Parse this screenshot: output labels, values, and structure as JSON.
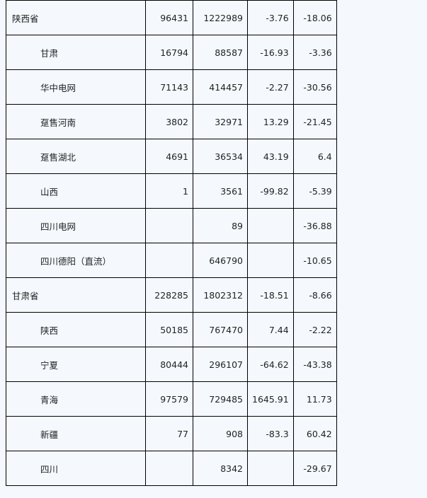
{
  "rows": [
    {
      "name": "陕西省",
      "sub": false,
      "c1": "96431",
      "c2": "1222989",
      "c3": "-3.76",
      "c4": "-18.06"
    },
    {
      "name": "甘肃",
      "sub": true,
      "c1": "16794",
      "c2": "88587",
      "c3": "-16.93",
      "c4": "-3.36"
    },
    {
      "name": "华中电网",
      "sub": true,
      "c1": "71143",
      "c2": "414457",
      "c3": "-2.27",
      "c4": "-30.56"
    },
    {
      "name": "趸售河南",
      "sub": true,
      "c1": "3802",
      "c2": "32971",
      "c3": "13.29",
      "c4": "-21.45"
    },
    {
      "name": "趸售湖北",
      "sub": true,
      "c1": "4691",
      "c2": "36534",
      "c3": "43.19",
      "c4": "6.4"
    },
    {
      "name": "山西",
      "sub": true,
      "c1": "1",
      "c2": "3561",
      "c3": "-99.82",
      "c4": "-5.39"
    },
    {
      "name": "四川电网",
      "sub": true,
      "c1": "",
      "c2": "89",
      "c3": "",
      "c4": "-36.88"
    },
    {
      "name": "四川德阳（直流）",
      "sub": true,
      "c1": "",
      "c2": "646790",
      "c3": "",
      "c4": "-10.65"
    },
    {
      "name": "甘肃省",
      "sub": false,
      "c1": "228285",
      "c2": "1802312",
      "c3": "-18.51",
      "c4": "-8.66"
    },
    {
      "name": "陕西",
      "sub": true,
      "c1": "50185",
      "c2": "767470",
      "c3": "7.44",
      "c4": "-2.22"
    },
    {
      "name": "宁夏",
      "sub": true,
      "c1": "80444",
      "c2": "296107",
      "c3": "-64.62",
      "c4": "-43.38"
    },
    {
      "name": "青海",
      "sub": true,
      "c1": "97579",
      "c2": "729485",
      "c3": "1645.91",
      "c4": "11.73"
    },
    {
      "name": "新疆",
      "sub": true,
      "c1": "77",
      "c2": "908",
      "c3": "-83.3",
      "c4": "60.42"
    },
    {
      "name": "四川",
      "sub": true,
      "c1": "",
      "c2": "8342",
      "c3": "",
      "c4": "-29.67"
    }
  ]
}
